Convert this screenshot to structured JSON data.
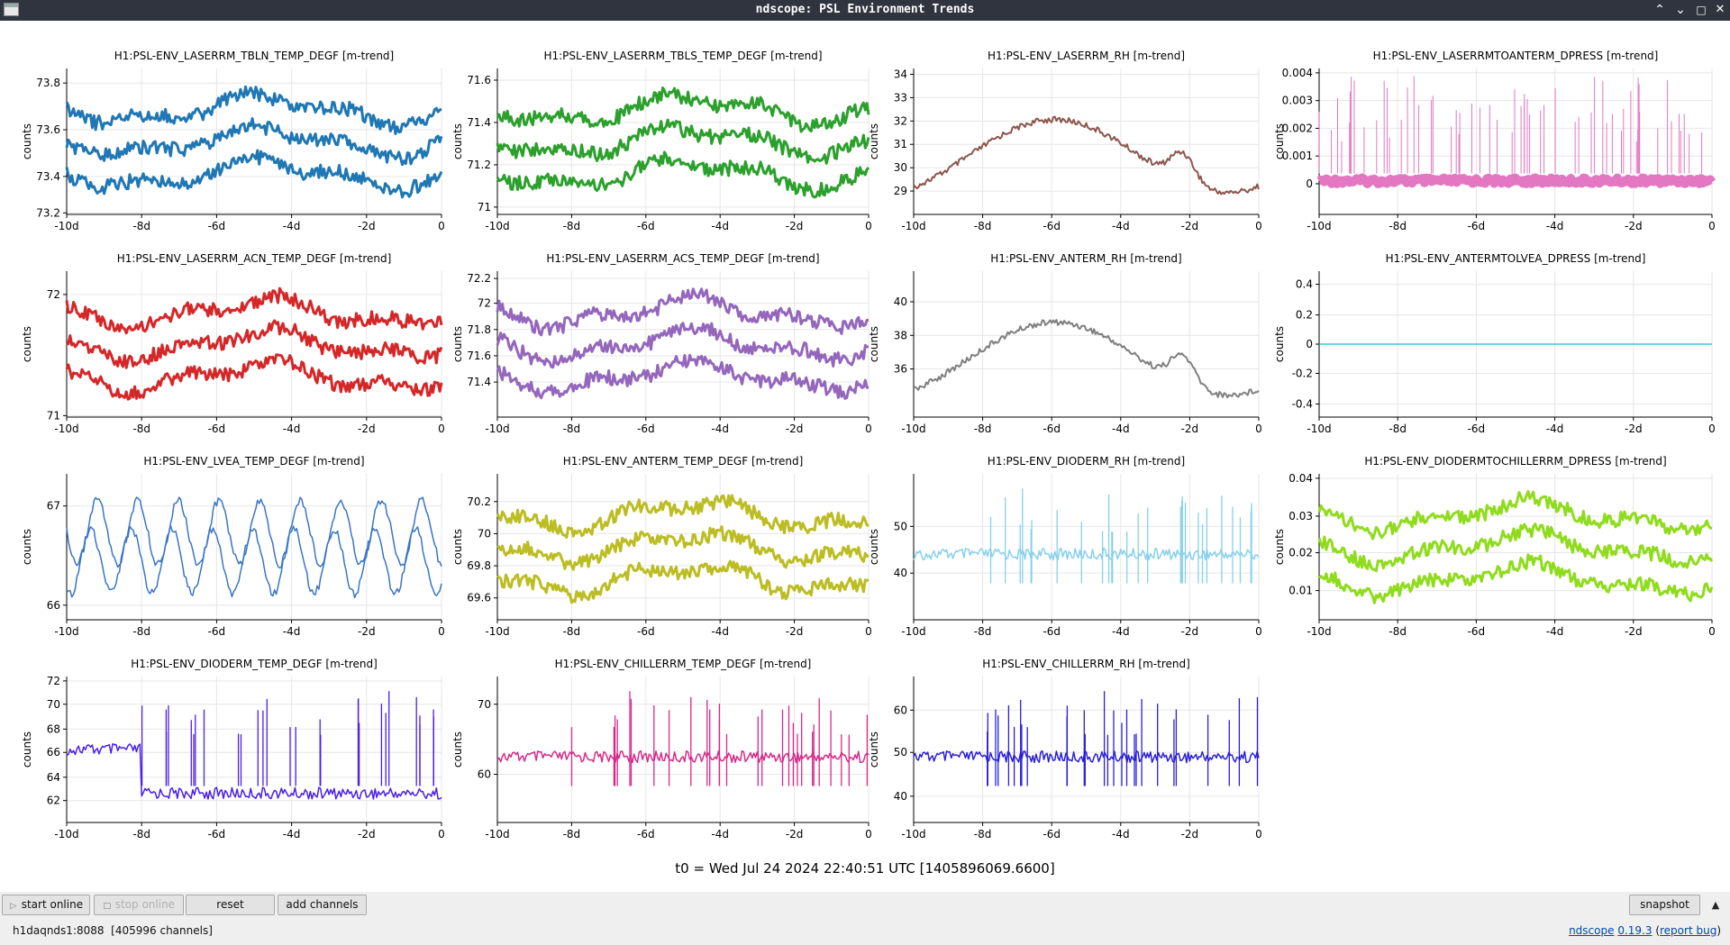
{
  "window": {
    "title": "ndscope: PSL Environment Trends"
  },
  "plots": [
    {
      "title": "H1:PSL-ENV_LASERRM_TBLN_TEMP_DEGF [m-trend]",
      "ylabel": "counts",
      "color": "#1f77b4",
      "yticks": [
        "73.8",
        "73.6",
        "73.4",
        "73.2"
      ],
      "xticks": [
        "-10d",
        "-8d",
        "-6d",
        "-4d",
        "-2d",
        "0"
      ]
    },
    {
      "title": "H1:PSL-ENV_LASERRM_TBLS_TEMP_DEGF [m-trend]",
      "ylabel": "counts",
      "color": "#2ca02c",
      "yticks": [
        "71.6",
        "71.4",
        "71.2",
        "71"
      ],
      "xticks": [
        "-10d",
        "-8d",
        "-6d",
        "-4d",
        "-2d",
        "0"
      ]
    },
    {
      "title": "H1:PSL-ENV_LASERRM_RH [m-trend]",
      "ylabel": "counts",
      "color": "#8c564b",
      "yticks": [
        "34",
        "33",
        "32",
        "31",
        "30",
        "29"
      ],
      "xticks": [
        "-10d",
        "-8d",
        "-6d",
        "-4d",
        "-2d",
        "0"
      ]
    },
    {
      "title": "H1:PSL-ENV_LASERRMTOANTERM_DPRESS [m-trend]",
      "ylabel": "counts",
      "color": "#e377c2",
      "yticks": [
        "0.004",
        "0.003",
        "0.002",
        "0.001",
        "0"
      ],
      "xticks": [
        "-10d",
        "-8d",
        "-6d",
        "-4d",
        "-2d",
        "0"
      ]
    },
    {
      "title": "H1:PSL-ENV_LASERRM_ACN_TEMP_DEGF [m-trend]",
      "ylabel": "counts",
      "color": "#d62728",
      "yticks": [
        "72",
        "71"
      ],
      "xticks": [
        "-10d",
        "-8d",
        "-6d",
        "-4d",
        "-2d",
        "0"
      ]
    },
    {
      "title": "H1:PSL-ENV_LASERRM_ACS_TEMP_DEGF [m-trend]",
      "ylabel": "counts",
      "color": "#9467bd",
      "yticks": [
        "72.2",
        "72",
        "71.8",
        "71.6",
        "71.4"
      ],
      "xticks": [
        "-10d",
        "-8d",
        "-6d",
        "-4d",
        "-2d",
        "0"
      ]
    },
    {
      "title": "H1:PSL-ENV_ANTERM_RH [m-trend]",
      "ylabel": "counts",
      "color": "#7f7f7f",
      "yticks": [
        "40",
        "38",
        "36"
      ],
      "xticks": [
        "-10d",
        "-8d",
        "-6d",
        "-4d",
        "-2d",
        "0"
      ]
    },
    {
      "title": "H1:PSL-ENV_ANTERMTOLVEA_DPRESS [m-trend]",
      "ylabel": "counts",
      "color": "#17becf",
      "yticks": [
        "0.4",
        "0.2",
        "0",
        "-0.2",
        "-0.4"
      ],
      "xticks": [
        "-10d",
        "-8d",
        "-6d",
        "-4d",
        "-2d",
        "0"
      ]
    },
    {
      "title": "H1:PSL-ENV_LVEA_TEMP_DEGF [m-trend]",
      "ylabel": "counts",
      "color": "#3a75c4",
      "yticks": [
        "67",
        "66"
      ],
      "xticks": [
        "-10d",
        "-8d",
        "-6d",
        "-4d",
        "-2d",
        "0"
      ]
    },
    {
      "title": "H1:PSL-ENV_ANTERM_TEMP_DEGF [m-trend]",
      "ylabel": "counts",
      "color": "#bcbd22",
      "yticks": [
        "70.2",
        "70",
        "69.8",
        "69.6"
      ],
      "xticks": [
        "-10d",
        "-8d",
        "-6d",
        "-4d",
        "-2d",
        "0"
      ]
    },
    {
      "title": "H1:PSL-ENV_DIODERM_RH [m-trend]",
      "ylabel": "counts",
      "color": "#87cfee",
      "yticks": [
        "50",
        "40"
      ],
      "xticks": [
        "-10d",
        "-8d",
        "-6d",
        "-4d",
        "-2d",
        "0"
      ]
    },
    {
      "title": "H1:PSL-ENV_DIODERMTOCHILLERRM_DPRESS [m-trend]",
      "ylabel": "counts",
      "color": "#8fdc1c",
      "yticks": [
        "0.04",
        "0.03",
        "0.02",
        "0.01"
      ],
      "xticks": [
        "-10d",
        "-8d",
        "-6d",
        "-4d",
        "-2d",
        "0"
      ]
    },
    {
      "title": "H1:PSL-ENV_DIODERM_TEMP_DEGF [m-trend]",
      "ylabel": "counts",
      "color": "#4b1fe8",
      "yticks": [
        "72",
        "70",
        "68",
        "66",
        "64",
        "62"
      ],
      "xticks": [
        "-10d",
        "-8d",
        "-6d",
        "-4d",
        "-2d",
        "0"
      ]
    },
    {
      "title": "H1:PSL-ENV_CHILLERRM_TEMP_DEGF [m-trend]",
      "ylabel": "counts",
      "color": "#d62a8a",
      "yticks": [
        "70",
        "60"
      ],
      "xticks": [
        "-10d",
        "-8d",
        "-6d",
        "-4d",
        "-2d",
        "0"
      ]
    },
    {
      "title": "H1:PSL-ENV_CHILLERRM_RH [m-trend]",
      "ylabel": "counts",
      "color": "#2a1fd8",
      "yticks": [
        "60",
        "50",
        "40"
      ],
      "xticks": [
        "-10d",
        "-8d",
        "-6d",
        "-4d",
        "-2d",
        "0"
      ]
    }
  ],
  "t0_label": "t0 = Wed Jul 24 2024 22:40:51 UTC [1405896069.6600]",
  "toolbar": {
    "start_online": "start online",
    "stop_online": "stop online",
    "reset": "reset",
    "add_channels": "add channels",
    "snapshot": "snapshot"
  },
  "status": {
    "server": "h1daqnds1:8088",
    "channels": "[405996 channels]",
    "app_name": "ndscope",
    "version": "0.19.3",
    "report_bug": "report bug"
  },
  "colors": {
    "titlebar": "#2f343f",
    "grid": "#e5e5e5",
    "toolbar": "#efefef"
  },
  "icons": {
    "minimize": "chevron-up-icon",
    "restore": "chevron-down-icon",
    "maximize": "maximize-icon",
    "close": "close-icon"
  }
}
